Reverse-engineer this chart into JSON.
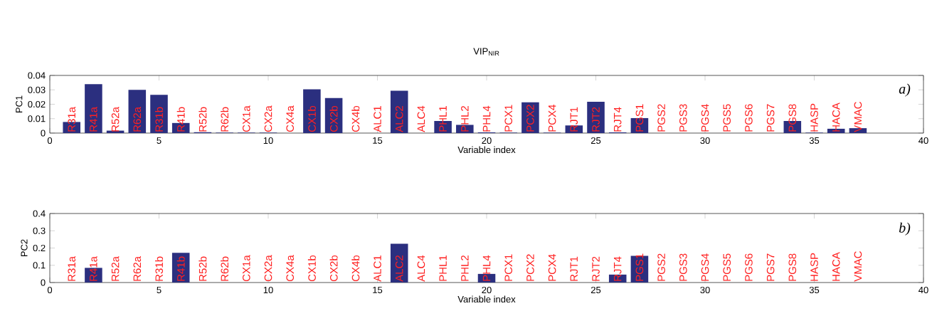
{
  "chart_data": [
    {
      "type": "bar",
      "title": "VIP$_{NIR}$",
      "xlabel": "Variable index",
      "ylabel": "PC1",
      "color": "#2b2f7f",
      "x": [
        1,
        2,
        3,
        4,
        5,
        6,
        7,
        8,
        9,
        10,
        11,
        12,
        13,
        14,
        15,
        16,
        17,
        18,
        19,
        20,
        21,
        22,
        23,
        24,
        25,
        26,
        27,
        28,
        29,
        30,
        31,
        32,
        33,
        34,
        35,
        36,
        37
      ],
      "values": [
        0.0077,
        0.034,
        0.0017,
        0.03,
        0.0266,
        0.007,
        0.0006,
        0.0003,
        0.0003,
        0.0003,
        0,
        0.0304,
        0.0243,
        0,
        0,
        0.0294,
        0,
        0.0084,
        0.0057,
        0.0005,
        0.0003,
        0.0214,
        0.0003,
        0.0053,
        0.0217,
        0.0005,
        0.0104,
        0,
        0,
        0,
        0,
        0,
        0,
        0.0084,
        0.0003,
        0.003,
        0.0034
      ],
      "xlim": [
        0,
        40
      ],
      "xticks": [
        0,
        5,
        10,
        15,
        20,
        25,
        30,
        35,
        40
      ],
      "ylim": [
        0,
        0.04
      ],
      "yticks": [
        0,
        0.01,
        0.02,
        0.03,
        0.04
      ],
      "annotations": [
        "a)",
        {
          "text": "R31a",
          "x": 1,
          "y": 0
        },
        {
          "text": "R41a",
          "x": 2,
          "y": 0
        },
        {
          "text": "R52a",
          "x": 3,
          "y": 0
        },
        {
          "text": "R62a",
          "x": 4,
          "y": 0
        },
        {
          "text": "R31b",
          "x": 5,
          "y": 0
        },
        {
          "text": "R41b",
          "x": 6,
          "y": 0
        },
        {
          "text": "R52b",
          "x": 7,
          "y": 0
        },
        {
          "text": "R62b",
          "x": 8,
          "y": 0
        },
        {
          "text": "CX1a",
          "x": 9,
          "y": 0
        },
        {
          "text": "CX2a",
          "x": 10,
          "y": 0
        },
        {
          "text": "CX4a",
          "x": 11,
          "y": 0
        },
        {
          "text": "CX1b",
          "x": 12,
          "y": 0
        },
        {
          "text": "CX2b",
          "x": 13,
          "y": 0
        },
        {
          "text": "CX4b",
          "x": 14,
          "y": 0
        },
        {
          "text": "ALC1",
          "x": 15,
          "y": 0
        },
        {
          "text": "ALC2",
          "x": 16,
          "y": 0
        },
        {
          "text": "ALC4",
          "x": 17,
          "y": 0
        },
        {
          "text": "PHL1",
          "x": 18,
          "y": 0
        },
        {
          "text": "PHL2",
          "x": 19,
          "y": 0
        },
        {
          "text": "PHL4",
          "x": 20,
          "y": 0
        },
        {
          "text": "PCX1",
          "x": 21,
          "y": 0
        },
        {
          "text": "PCX2",
          "x": 22,
          "y": 0
        },
        {
          "text": "PCX4",
          "x": 23,
          "y": 0
        },
        {
          "text": "RJT1",
          "x": 24,
          "y": 0
        },
        {
          "text": "RJT2",
          "x": 25,
          "y": 0
        },
        {
          "text": "RJT4",
          "x": 26,
          "y": 0
        },
        {
          "text": "PGS1",
          "x": 27,
          "y": 0
        },
        {
          "text": "PGS2",
          "x": 28,
          "y": 0
        },
        {
          "text": "PGS3",
          "x": 29,
          "y": 0
        },
        {
          "text": "PGS4",
          "x": 30,
          "y": 0
        },
        {
          "text": "PGS5",
          "x": 31,
          "y": 0
        },
        {
          "text": "PGS6",
          "x": 32,
          "y": 0
        },
        {
          "text": "PGS7",
          "x": 33,
          "y": 0
        },
        {
          "text": "PGS8",
          "x": 34,
          "y": 0
        },
        {
          "text": "HASP",
          "x": 35,
          "y": 0
        },
        {
          "text": "HACA",
          "x": 36,
          "y": 0
        },
        {
          "text": "VMAC",
          "x": 37,
          "y": 0
        }
      ]
    },
    {
      "type": "bar",
      "xlabel": "Variable index",
      "ylabel": "PC2",
      "color": "#2b2f7f",
      "x": [
        1,
        2,
        3,
        4,
        5,
        6,
        7,
        8,
        9,
        10,
        11,
        12,
        13,
        14,
        15,
        16,
        17,
        18,
        19,
        20,
        21,
        22,
        23,
        24,
        25,
        26,
        27,
        28,
        29,
        30,
        31,
        32,
        33,
        34,
        35,
        36,
        37
      ],
      "values": [
        0,
        0.085,
        0,
        0,
        0,
        0.172,
        0,
        0,
        0,
        0,
        0,
        0,
        0,
        0,
        0,
        0.225,
        0,
        0,
        0,
        0.05,
        0,
        0,
        0,
        0,
        0,
        0.046,
        0.155,
        0,
        0,
        0,
        0,
        0,
        0,
        0,
        0,
        0,
        0
      ],
      "xlim": [
        0,
        40
      ],
      "xticks": [
        0,
        5,
        10,
        15,
        20,
        25,
        30,
        35,
        40
      ],
      "ylim": [
        0,
        0.4
      ],
      "yticks": [
        0,
        0.1,
        0.2,
        0.3,
        0.4
      ],
      "annotations": [
        "b)",
        {
          "text": "R31a",
          "x": 1,
          "y": 0
        },
        {
          "text": "R41a",
          "x": 2,
          "y": 0
        },
        {
          "text": "R52a",
          "x": 3,
          "y": 0
        },
        {
          "text": "R62a",
          "x": 4,
          "y": 0
        },
        {
          "text": "R31b",
          "x": 5,
          "y": 0
        },
        {
          "text": "R41b",
          "x": 6,
          "y": 0
        },
        {
          "text": "R52b",
          "x": 7,
          "y": 0
        },
        {
          "text": "R62b",
          "x": 8,
          "y": 0
        },
        {
          "text": "CX1a",
          "x": 9,
          "y": 0
        },
        {
          "text": "CX2a",
          "x": 10,
          "y": 0
        },
        {
          "text": "CX4a",
          "x": 11,
          "y": 0
        },
        {
          "text": "CX1b",
          "x": 12,
          "y": 0
        },
        {
          "text": "CX2b",
          "x": 13,
          "y": 0
        },
        {
          "text": "CX4b",
          "x": 14,
          "y": 0
        },
        {
          "text": "ALC1",
          "x": 15,
          "y": 0
        },
        {
          "text": "ALC2",
          "x": 16,
          "y": 0
        },
        {
          "text": "ALC4",
          "x": 17,
          "y": 0
        },
        {
          "text": "PHL1",
          "x": 18,
          "y": 0
        },
        {
          "text": "PHL2",
          "x": 19,
          "y": 0
        },
        {
          "text": "PHL4",
          "x": 20,
          "y": 0
        },
        {
          "text": "PCX1",
          "x": 21,
          "y": 0
        },
        {
          "text": "PCX2",
          "x": 22,
          "y": 0
        },
        {
          "text": "PCX4",
          "x": 23,
          "y": 0
        },
        {
          "text": "RJT1",
          "x": 24,
          "y": 0
        },
        {
          "text": "RJT2",
          "x": 25,
          "y": 0
        },
        {
          "text": "RJT4",
          "x": 26,
          "y": 0
        },
        {
          "text": "PGS1",
          "x": 27,
          "y": 0
        },
        {
          "text": "PGS2",
          "x": 28,
          "y": 0
        },
        {
          "text": "PGS3",
          "x": 29,
          "y": 0
        },
        {
          "text": "PGS4",
          "x": 30,
          "y": 0
        },
        {
          "text": "PGS5",
          "x": 31,
          "y": 0
        },
        {
          "text": "PGS6",
          "x": 32,
          "y": 0
        },
        {
          "text": "PGS7",
          "x": 33,
          "y": 0
        },
        {
          "text": "PGS8",
          "x": 34,
          "y": 0
        },
        {
          "text": "HASP",
          "x": 35,
          "y": 0
        },
        {
          "text": "HACA",
          "x": 36,
          "y": 0
        },
        {
          "text": "VMAC",
          "x": 37,
          "y": 0
        }
      ]
    }
  ]
}
